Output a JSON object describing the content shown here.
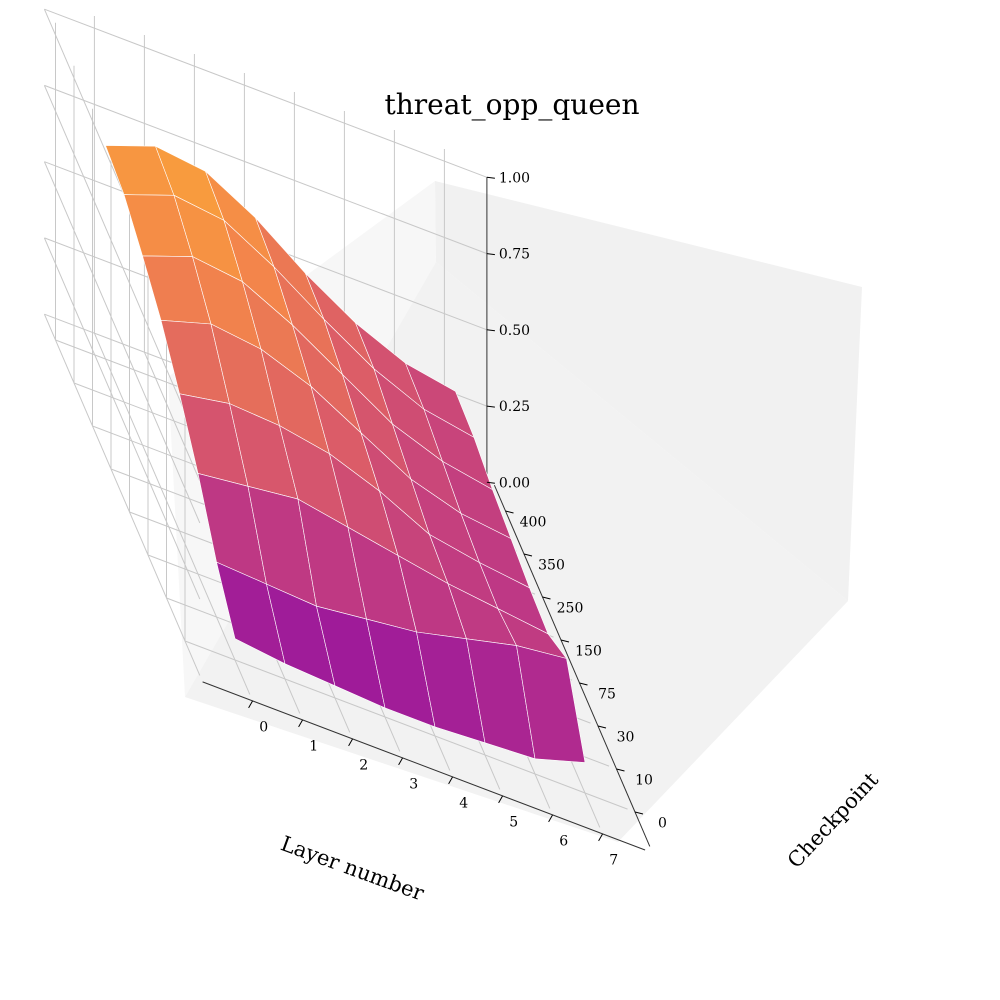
{
  "chart_data": {
    "type": "surface",
    "title": "threat_opp_queen",
    "xlabel": "Layer number",
    "ylabel": "Checkpoint",
    "zlabel": "",
    "x_ticks": [
      "0",
      "1",
      "2",
      "3",
      "4",
      "5",
      "6",
      "7"
    ],
    "y_ticks": [
      "0",
      "10",
      "30",
      "75",
      "150",
      "250",
      "350",
      "400"
    ],
    "z_ticks": [
      "0.00",
      "0.25",
      "0.50",
      "0.75",
      "1.00"
    ],
    "zlim": [
      0,
      1
    ],
    "colormap": "plasma",
    "grid": true,
    "z_values": [
      [
        0.07,
        0.05,
        0.04,
        0.03,
        0.03,
        0.04,
        0.05,
        0.1
      ],
      [
        0.18,
        0.17,
        0.16,
        0.18,
        0.2,
        0.24,
        0.28,
        0.3
      ],
      [
        0.33,
        0.35,
        0.37,
        0.34,
        0.31,
        0.28,
        0.26,
        0.24
      ],
      [
        0.45,
        0.48,
        0.47,
        0.44,
        0.38,
        0.3,
        0.27,
        0.25
      ],
      [
        0.55,
        0.6,
        0.58,
        0.52,
        0.43,
        0.34,
        0.29,
        0.27
      ],
      [
        0.62,
        0.68,
        0.66,
        0.58,
        0.48,
        0.38,
        0.32,
        0.29
      ],
      [
        0.68,
        0.74,
        0.72,
        0.63,
        0.52,
        0.42,
        0.35,
        0.32
      ],
      [
        0.7,
        0.76,
        0.74,
        0.65,
        0.53,
        0.43,
        0.36,
        0.33
      ]
    ]
  }
}
